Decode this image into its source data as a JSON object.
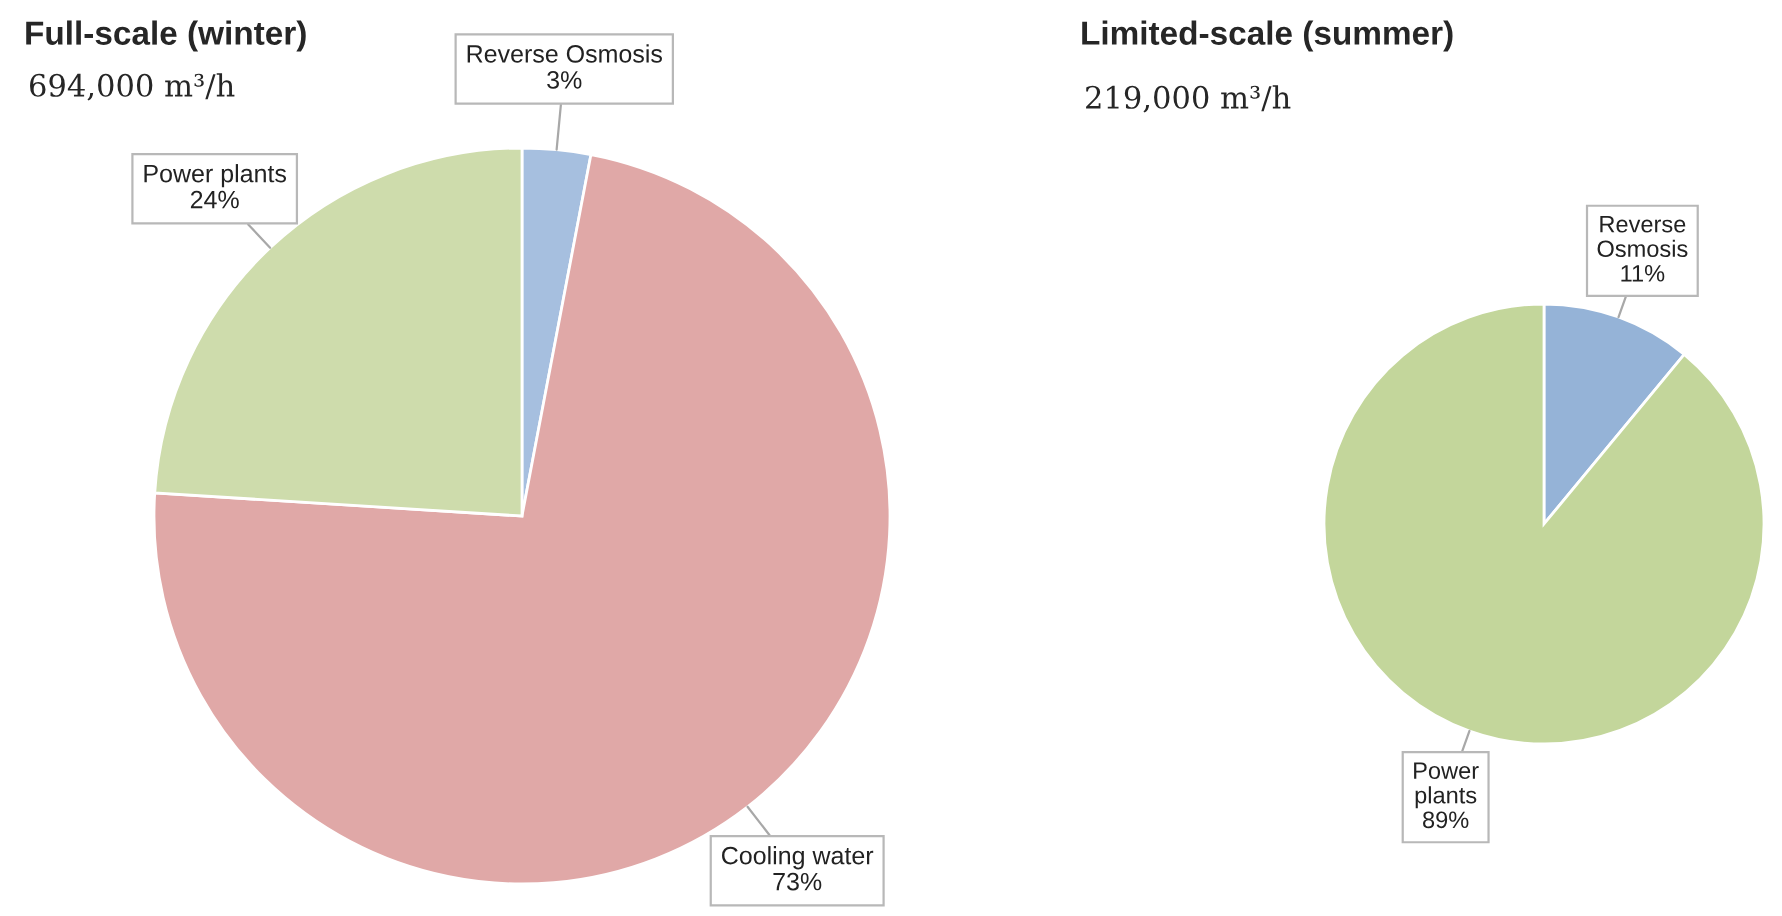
{
  "chart_data": [
    {
      "type": "pie",
      "title": "Full-scale (winter)",
      "subtitle": "694,000 m³/h",
      "categories": [
        "Reverse Osmosis",
        "Cooling water",
        "Power plants"
      ],
      "values": [
        3,
        73,
        24
      ],
      "colors": [
        "#a6bfdf",
        "#e0a8a7",
        "#cedcac"
      ],
      "value_labels": [
        "3%",
        "73%",
        "24%"
      ]
    },
    {
      "type": "pie",
      "title": "Limited-scale (summer)",
      "subtitle": "219,000 m³/h",
      "categories": [
        "Reverse Osmosis",
        "Power plants"
      ],
      "values": [
        11,
        89
      ],
      "colors": [
        "#95b3d7",
        "#c3d69b"
      ],
      "value_labels": [
        "11%",
        "89%"
      ]
    }
  ]
}
